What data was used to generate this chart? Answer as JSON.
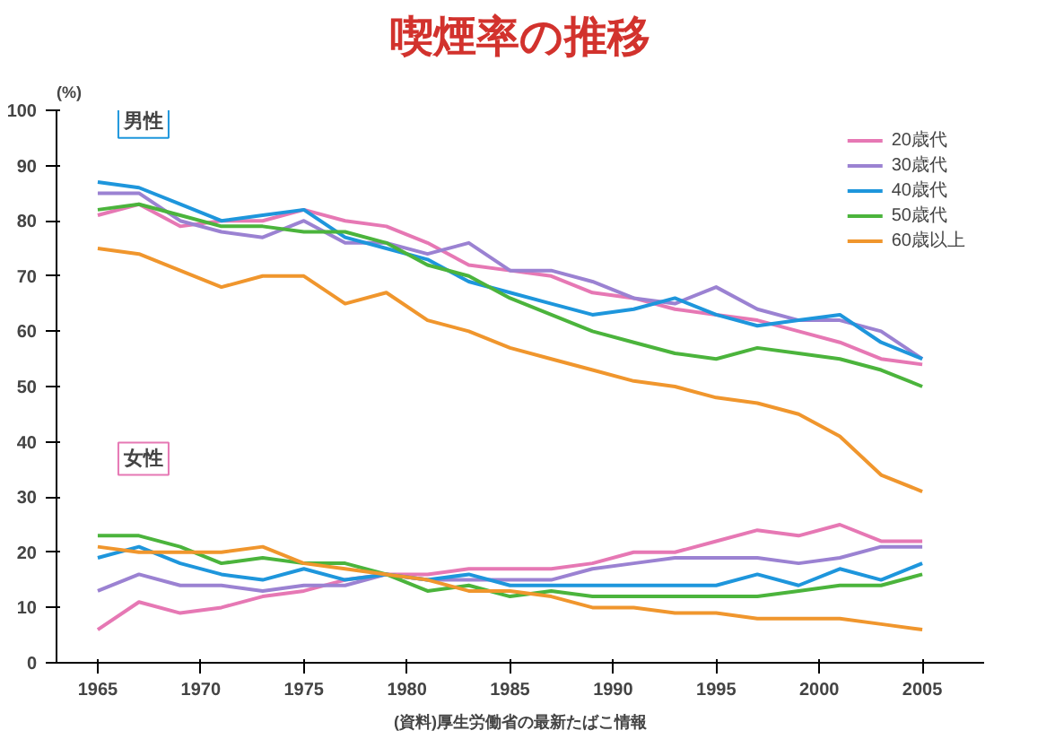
{
  "chart_data": {
    "type": "line",
    "title": "喫煙率の推移",
    "ylabel": "(%)",
    "x": [
      1965,
      1967,
      1969,
      1971,
      1973,
      1975,
      1977,
      1979,
      1981,
      1983,
      1985,
      1987,
      1989,
      1991,
      1993,
      1995,
      1997,
      1999,
      2001,
      2003,
      2005
    ],
    "xlim": [
      1963,
      2008
    ],
    "ylim": [
      0,
      100
    ],
    "xticks": [
      1965,
      1970,
      1975,
      1980,
      1985,
      1990,
      1995,
      2000,
      2005
    ],
    "yticks": [
      0,
      10,
      20,
      30,
      40,
      50,
      60,
      70,
      80,
      90,
      100
    ],
    "grid": false,
    "legend": "top right",
    "marker": "none",
    "line_style": "solid",
    "annotations": [
      "男性",
      "女性",
      "(資料)厚生労働省の最新たばこ情報"
    ],
    "series": [
      {
        "name": "20歳代",
        "color": "#e678b4",
        "values": [
          81,
          83,
          79,
          80,
          80,
          82,
          80,
          79,
          76,
          72,
          71,
          70,
          67,
          66,
          64,
          63,
          62,
          60,
          58,
          55,
          54
        ]
      },
      {
        "name": "30歳代",
        "color": "#9b82d2",
        "values": [
          85,
          85,
          80,
          78,
          77,
          80,
          76,
          76,
          74,
          76,
          71,
          71,
          69,
          66,
          65,
          68,
          64,
          62,
          62,
          60,
          55
        ]
      },
      {
        "name": "40歳代",
        "color": "#1e96dc",
        "values": [
          87,
          86,
          83,
          80,
          81,
          82,
          77,
          75,
          73,
          69,
          67,
          65,
          63,
          64,
          66,
          63,
          61,
          62,
          63,
          58,
          55
        ]
      },
      {
        "name": "50歳代",
        "color": "#4bb43c",
        "values": [
          82,
          83,
          81,
          79,
          79,
          78,
          78,
          76,
          72,
          70,
          66,
          63,
          60,
          58,
          56,
          55,
          57,
          56,
          55,
          53,
          50
        ]
      },
      {
        "name": "60歳以上",
        "color": "#f0962d",
        "values": [
          75,
          74,
          71,
          68,
          70,
          70,
          65,
          67,
          62,
          60,
          57,
          55,
          53,
          51,
          50,
          48,
          47,
          45,
          41,
          34,
          31
        ]
      },
      {
        "color": "#e678b4",
        "values": [
          6,
          11,
          9,
          10,
          12,
          13,
          15,
          16,
          16,
          17,
          17,
          17,
          18,
          20,
          20,
          22,
          24,
          23,
          25,
          22,
          22
        ]
      },
      {
        "color": "#9b82d2",
        "values": [
          13,
          16,
          14,
          14,
          13,
          14,
          14,
          16,
          15,
          15,
          15,
          15,
          17,
          18,
          19,
          19,
          19,
          18,
          19,
          21,
          21
        ]
      },
      {
        "color": "#1e96dc",
        "values": [
          19,
          21,
          18,
          16,
          15,
          17,
          15,
          16,
          15,
          16,
          14,
          14,
          14,
          14,
          14,
          14,
          16,
          14,
          17,
          15,
          18
        ]
      },
      {
        "color": "#4bb43c",
        "values": [
          23,
          23,
          21,
          18,
          19,
          18,
          18,
          16,
          13,
          14,
          12,
          13,
          12,
          12,
          12,
          12,
          12,
          13,
          14,
          14,
          16
        ]
      },
      {
        "color": "#f0962d",
        "values": [
          21,
          20,
          20,
          20,
          21,
          18,
          17,
          16,
          15,
          13,
          13,
          12,
          10,
          10,
          9,
          9,
          8,
          8,
          8,
          7,
          6
        ]
      }
    ]
  }
}
